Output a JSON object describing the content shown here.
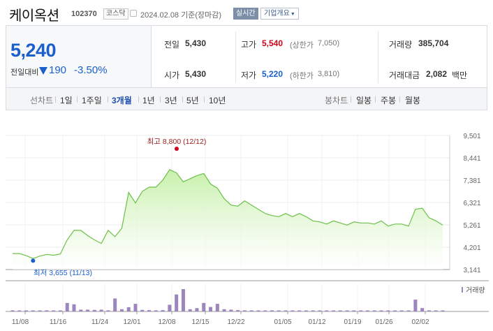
{
  "header": {
    "company": "케이옥션",
    "code": "102370",
    "market": "코스닥",
    "date_status": "2024.02.08 기준(장마감)",
    "realtime_label": "실시간",
    "company_info_label": "기업개요"
  },
  "summary": {
    "price": "5,240",
    "change_label": "전일대비",
    "change": "190",
    "change_pct": "-3.50%",
    "prev_close_label": "전일",
    "prev_close": "5,430",
    "open_label": "시가",
    "open": "5,430",
    "high_label": "고가",
    "high": "5,540",
    "upper_limit_label": "(상한가",
    "upper_limit": "7,050)",
    "low_label": "저가",
    "low": "5,220",
    "lower_limit_label": "(하한가",
    "lower_limit": "3,810)",
    "volume_label": "거래량",
    "volume": "385,704",
    "amount_label": "거래대금",
    "amount": "2,082",
    "amount_unit": "백만"
  },
  "period_bar": {
    "line_chart_label": "선차트",
    "line_periods": [
      "1일",
      "1주일",
      "3개월",
      "1년",
      "3년",
      "5년",
      "10년"
    ],
    "selected_period": "3개월",
    "candle_chart_label": "봉차트",
    "candle_periods": [
      "일봉",
      "주봉",
      "월봉"
    ]
  },
  "colors": {
    "price_down": "#1a5fcc",
    "price_up": "#d0021b",
    "line": "#6cc04a",
    "area": "#c7f0aa",
    "volume_bar": "#9c86bd"
  },
  "chart_data": {
    "type": "area",
    "y_ticks": [
      "9,501",
      "8,441",
      "7,381",
      "6,321",
      "5,261",
      "4,201",
      "3,141"
    ],
    "ylim": [
      3141,
      9501
    ],
    "x_ticks": [
      "11/08",
      "11/16",
      "11/24",
      "12/01",
      "12/08",
      "12/15",
      "12/22",
      "01/05",
      "01/12",
      "01/19",
      "01/26",
      "02/02"
    ],
    "max_label": "최고 8,800 (12/12)",
    "min_label": "최저 3,655 (11/13)",
    "volume_label": "거래량",
    "grid": true,
    "close": [
      3900,
      3900,
      3800,
      3660,
      3780,
      3860,
      3820,
      3880,
      4550,
      5000,
      5000,
      4750,
      4550,
      4380,
      5000,
      4700,
      5100,
      6800,
      6300,
      6850,
      7050,
      7050,
      7380,
      7880,
      7730,
      7300,
      7450,
      7600,
      7700,
      7200,
      7000,
      6500,
      6200,
      6150,
      6400,
      6200,
      6000,
      5800,
      5700,
      5650,
      5800,
      5650,
      5800,
      5650,
      5450,
      5400,
      5300,
      5450,
      5350,
      5250,
      5400,
      5350,
      5350,
      5300,
      5450,
      5200,
      5300,
      5300,
      5200,
      6000,
      6050,
      5600,
      5450,
      5250
    ],
    "volume": [
      0,
      0,
      0,
      0,
      0,
      0,
      0,
      0,
      0,
      0,
      0,
      0,
      0,
      0,
      0,
      0,
      0,
      0,
      0,
      0,
      0,
      0,
      0,
      0,
      0,
      0,
      0,
      0,
      0,
      0,
      0,
      0,
      0,
      0,
      0,
      0,
      0,
      0,
      0,
      0,
      0,
      0,
      0,
      0,
      0,
      0,
      0,
      0,
      0,
      0,
      0,
      0,
      0,
      0,
      0,
      0,
      0,
      0,
      0,
      0,
      0,
      0,
      0,
      0
    ],
    "volume_rel": [
      0.05,
      0.04,
      0.03,
      0.04,
      0.03,
      0.05,
      0.04,
      0.04,
      0.38,
      0.32,
      0.08,
      0.08,
      0.07,
      0.08,
      0.05,
      0.58,
      0.1,
      0.19,
      0.34,
      0.07,
      0.06,
      0.05,
      0.06,
      0.3,
      0.76,
      1.0,
      0.1,
      0.15,
      0.38,
      0.2,
      0.34,
      0.1,
      0.08,
      0.06,
      0.05,
      0.05,
      0.04,
      0.04,
      0.05,
      0.03,
      0.04,
      0.04,
      0.03,
      0.03,
      0.04,
      0.03,
      0.03,
      0.03,
      0.03,
      0.03,
      0.03,
      0.03,
      0.03,
      0.03,
      0.03,
      0.03,
      0.03,
      0.03,
      0.03,
      0.53,
      0.15,
      0.05,
      0.04,
      0.03
    ]
  }
}
